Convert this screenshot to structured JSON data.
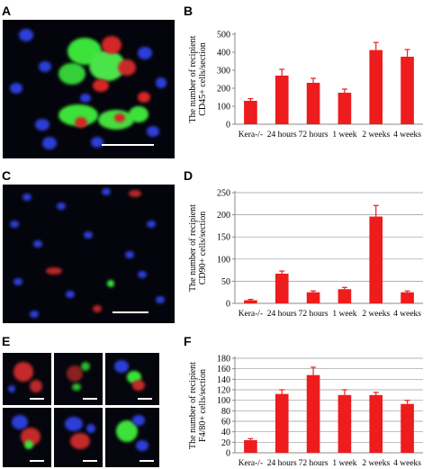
{
  "panels": {
    "A": "A",
    "B": "B",
    "C": "C",
    "D": "D",
    "E": "E",
    "F": "F"
  },
  "colors": {
    "bar": "#ee1c1c",
    "axis": "#888888",
    "micro_background": "#04050c",
    "nuclei_blue": "#2d3ed8",
    "marker_red": "#d42626",
    "marker_green": "#3ce23a",
    "scale_bar": "#ffffff"
  },
  "chart_data": [
    {
      "panel": "B",
      "type": "bar",
      "ylabel": [
        "The number of recipient",
        "CD45+ cells/section"
      ],
      "categories": [
        "Kera-/-",
        "24 hours",
        "72 hours",
        "1 week",
        "2 weeks",
        "4 weeks"
      ],
      "values": [
        130,
        270,
        230,
        175,
        412,
        375
      ],
      "errors": [
        12,
        35,
        25,
        20,
        42,
        40
      ],
      "ylim": [
        0,
        500
      ],
      "yticks": [
        0,
        100,
        200,
        300,
        400,
        500
      ],
      "grid": false
    },
    {
      "panel": "D",
      "type": "bar",
      "ylabel": [
        "The number of recipient",
        "CD90+ cells/section"
      ],
      "categories": [
        "Kera-/-",
        "24 hours",
        "72 hours",
        "1 week",
        "2 weeks",
        "4 weeks"
      ],
      "values": [
        7,
        67,
        25,
        32,
        196,
        25
      ],
      "errors": [
        2,
        6,
        3,
        4,
        25,
        3
      ],
      "ylim": [
        0,
        250
      ],
      "yticks": [
        0,
        50,
        100,
        150,
        200,
        250
      ],
      "grid": true
    },
    {
      "panel": "F",
      "type": "bar",
      "ylabel": [
        "The number of recipient",
        "F4/80+ cells/section"
      ],
      "categories": [
        "Kera-/-",
        "24 hours",
        "72 hours",
        "1 week",
        "2 weeks",
        "4 weeks"
      ],
      "values": [
        24,
        112,
        148,
        110,
        110,
        93
      ],
      "errors": [
        3,
        8,
        15,
        10,
        5,
        7
      ],
      "ylim": [
        0,
        180
      ],
      "yticks": [
        0,
        20,
        40,
        60,
        80,
        100,
        120,
        140,
        160,
        180
      ],
      "grid": true
    }
  ]
}
